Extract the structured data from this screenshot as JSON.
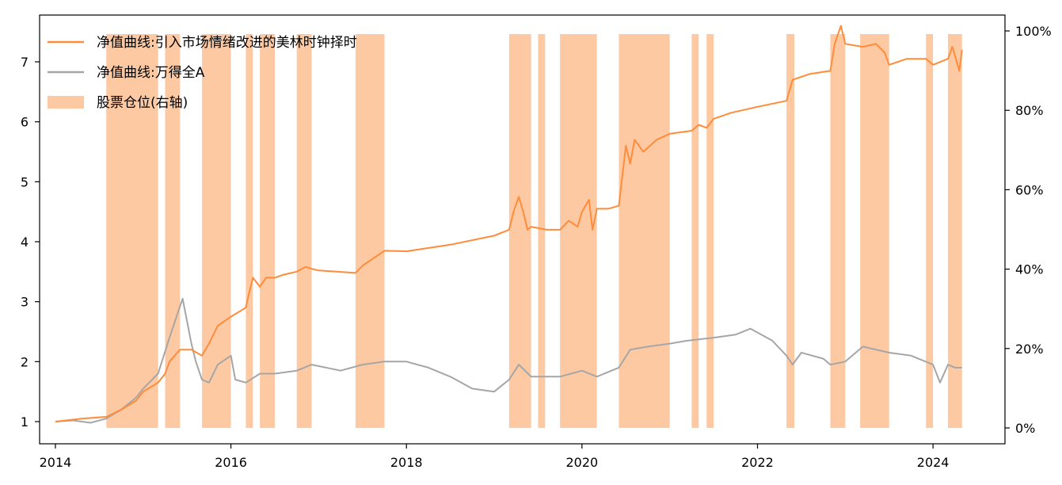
{
  "chart_data": {
    "type": "line",
    "title": "",
    "xlabel": "",
    "ylabel": "",
    "xlim": [
      2013.82,
      2024.82
    ],
    "ylim": [
      0.63,
      7.78
    ],
    "y2lim": [
      -0.04,
      1.04
    ],
    "x_ticks": [
      2014,
      2016,
      2018,
      2020,
      2022,
      2024
    ],
    "y_ticks": [
      1,
      2,
      3,
      4,
      5,
      6,
      7
    ],
    "y2_ticks": [
      0,
      0.2,
      0.4,
      0.6,
      0.8,
      1.0
    ],
    "y2_tick_labels": [
      "0%",
      "20%",
      "40%",
      "60%",
      "80%",
      "100%"
    ],
    "legend_position": "top-left",
    "legend": [
      {
        "label": "净值曲线:引入市场情绪改进的美林时钟择时",
        "kind": "line",
        "color": "#ff8c3a"
      },
      {
        "label": "净值曲线:万得全A",
        "kind": "line",
        "color": "#a6a6a6"
      },
      {
        "label": "股票仓位(右轴)",
        "kind": "patch",
        "color": "#fdc9a3"
      }
    ],
    "position_periods": [
      {
        "start": 2014.58,
        "end": 2015.17,
        "value": 1.0
      },
      {
        "start": 2015.25,
        "end": 2015.42,
        "value": 1.0
      },
      {
        "start": 2015.67,
        "end": 2016.0,
        "value": 1.0
      },
      {
        "start": 2016.17,
        "end": 2016.25,
        "value": 1.0
      },
      {
        "start": 2016.33,
        "end": 2016.5,
        "value": 1.0
      },
      {
        "start": 2016.75,
        "end": 2016.92,
        "value": 1.0
      },
      {
        "start": 2017.42,
        "end": 2017.75,
        "value": 1.0
      },
      {
        "start": 2019.17,
        "end": 2019.42,
        "value": 1.0
      },
      {
        "start": 2019.5,
        "end": 2019.58,
        "value": 1.0
      },
      {
        "start": 2019.75,
        "end": 2020.17,
        "value": 1.0
      },
      {
        "start": 2020.42,
        "end": 2021.0,
        "value": 1.0
      },
      {
        "start": 2021.25,
        "end": 2021.33,
        "value": 1.0
      },
      {
        "start": 2021.42,
        "end": 2021.5,
        "value": 1.0
      },
      {
        "start": 2022.33,
        "end": 2022.42,
        "value": 1.0
      },
      {
        "start": 2022.83,
        "end": 2023.0,
        "value": 1.0
      },
      {
        "start": 2023.17,
        "end": 2023.5,
        "value": 1.0
      },
      {
        "start": 2023.92,
        "end": 2024.0,
        "value": 1.0
      },
      {
        "start": 2024.17,
        "end": 2024.33,
        "value": 1.0
      }
    ],
    "series": [
      {
        "name": "净值曲线:引入市场情绪改进的美林时钟择时",
        "color": "#ff8c3a",
        "points": [
          [
            2014.0,
            1.0
          ],
          [
            2014.3,
            1.05
          ],
          [
            2014.58,
            1.08
          ],
          [
            2014.75,
            1.2
          ],
          [
            2014.92,
            1.35
          ],
          [
            2015.0,
            1.5
          ],
          [
            2015.17,
            1.65
          ],
          [
            2015.25,
            1.8
          ],
          [
            2015.3,
            2.0
          ],
          [
            2015.42,
            2.2
          ],
          [
            2015.55,
            2.2
          ],
          [
            2015.67,
            2.1
          ],
          [
            2015.75,
            2.3
          ],
          [
            2015.85,
            2.6
          ],
          [
            2015.95,
            2.7
          ],
          [
            2016.0,
            2.75
          ],
          [
            2016.17,
            2.9
          ],
          [
            2016.2,
            3.1
          ],
          [
            2016.25,
            3.4
          ],
          [
            2016.33,
            3.25
          ],
          [
            2016.4,
            3.4
          ],
          [
            2016.5,
            3.4
          ],
          [
            2016.6,
            3.45
          ],
          [
            2016.75,
            3.5
          ],
          [
            2016.85,
            3.58
          ],
          [
            2016.92,
            3.55
          ],
          [
            2017.0,
            3.52
          ],
          [
            2017.2,
            3.5
          ],
          [
            2017.42,
            3.48
          ],
          [
            2017.5,
            3.6
          ],
          [
            2017.6,
            3.7
          ],
          [
            2017.75,
            3.85
          ],
          [
            2018.0,
            3.84
          ],
          [
            2018.5,
            3.95
          ],
          [
            2019.0,
            4.1
          ],
          [
            2019.17,
            4.2
          ],
          [
            2019.22,
            4.5
          ],
          [
            2019.28,
            4.75
          ],
          [
            2019.33,
            4.5
          ],
          [
            2019.38,
            4.2
          ],
          [
            2019.42,
            4.25
          ],
          [
            2019.6,
            4.2
          ],
          [
            2019.75,
            4.2
          ],
          [
            2019.85,
            4.35
          ],
          [
            2019.95,
            4.25
          ],
          [
            2020.0,
            4.5
          ],
          [
            2020.08,
            4.7
          ],
          [
            2020.12,
            4.2
          ],
          [
            2020.17,
            4.55
          ],
          [
            2020.3,
            4.55
          ],
          [
            2020.42,
            4.6
          ],
          [
            2020.5,
            5.6
          ],
          [
            2020.55,
            5.3
          ],
          [
            2020.6,
            5.7
          ],
          [
            2020.7,
            5.5
          ],
          [
            2020.85,
            5.7
          ],
          [
            2021.0,
            5.8
          ],
          [
            2021.25,
            5.85
          ],
          [
            2021.33,
            5.95
          ],
          [
            2021.42,
            5.9
          ],
          [
            2021.5,
            6.05
          ],
          [
            2021.7,
            6.15
          ],
          [
            2022.0,
            6.25
          ],
          [
            2022.33,
            6.35
          ],
          [
            2022.4,
            6.7
          ],
          [
            2022.6,
            6.8
          ],
          [
            2022.83,
            6.85
          ],
          [
            2022.88,
            7.3
          ],
          [
            2022.95,
            7.6
          ],
          [
            2023.0,
            7.3
          ],
          [
            2023.2,
            7.25
          ],
          [
            2023.35,
            7.3
          ],
          [
            2023.45,
            7.15
          ],
          [
            2023.5,
            6.95
          ],
          [
            2023.7,
            7.05
          ],
          [
            2023.92,
            7.05
          ],
          [
            2024.0,
            6.95
          ],
          [
            2024.17,
            7.05
          ],
          [
            2024.22,
            7.25
          ],
          [
            2024.27,
            7.0
          ],
          [
            2024.3,
            6.85
          ],
          [
            2024.33,
            7.2
          ]
        ]
      },
      {
        "name": "净值曲线:万得全A",
        "color": "#a6a6a6",
        "points": [
          [
            2014.0,
            1.0
          ],
          [
            2014.2,
            1.02
          ],
          [
            2014.4,
            0.98
          ],
          [
            2014.58,
            1.05
          ],
          [
            2014.75,
            1.2
          ],
          [
            2014.92,
            1.4
          ],
          [
            2015.0,
            1.55
          ],
          [
            2015.17,
            1.8
          ],
          [
            2015.3,
            2.4
          ],
          [
            2015.45,
            3.05
          ],
          [
            2015.55,
            2.3
          ],
          [
            2015.6,
            2.0
          ],
          [
            2015.67,
            1.7
          ],
          [
            2015.75,
            1.65
          ],
          [
            2015.85,
            1.95
          ],
          [
            2016.0,
            2.1
          ],
          [
            2016.05,
            1.7
          ],
          [
            2016.17,
            1.65
          ],
          [
            2016.33,
            1.8
          ],
          [
            2016.5,
            1.8
          ],
          [
            2016.75,
            1.85
          ],
          [
            2016.92,
            1.95
          ],
          [
            2017.25,
            1.85
          ],
          [
            2017.5,
            1.95
          ],
          [
            2017.75,
            2.0
          ],
          [
            2018.0,
            2.0
          ],
          [
            2018.25,
            1.9
          ],
          [
            2018.5,
            1.75
          ],
          [
            2018.75,
            1.55
          ],
          [
            2019.0,
            1.5
          ],
          [
            2019.17,
            1.7
          ],
          [
            2019.28,
            1.95
          ],
          [
            2019.42,
            1.75
          ],
          [
            2019.75,
            1.75
          ],
          [
            2020.0,
            1.85
          ],
          [
            2020.17,
            1.75
          ],
          [
            2020.42,
            1.9
          ],
          [
            2020.55,
            2.2
          ],
          [
            2020.75,
            2.25
          ],
          [
            2021.0,
            2.3
          ],
          [
            2021.2,
            2.35
          ],
          [
            2021.5,
            2.4
          ],
          [
            2021.75,
            2.45
          ],
          [
            2021.92,
            2.55
          ],
          [
            2022.17,
            2.35
          ],
          [
            2022.33,
            2.1
          ],
          [
            2022.4,
            1.95
          ],
          [
            2022.5,
            2.15
          ],
          [
            2022.75,
            2.05
          ],
          [
            2022.83,
            1.95
          ],
          [
            2023.0,
            2.0
          ],
          [
            2023.2,
            2.25
          ],
          [
            2023.5,
            2.15
          ],
          [
            2023.75,
            2.1
          ],
          [
            2024.0,
            1.95
          ],
          [
            2024.08,
            1.65
          ],
          [
            2024.17,
            1.95
          ],
          [
            2024.25,
            1.9
          ],
          [
            2024.33,
            1.9
          ]
        ]
      }
    ]
  }
}
